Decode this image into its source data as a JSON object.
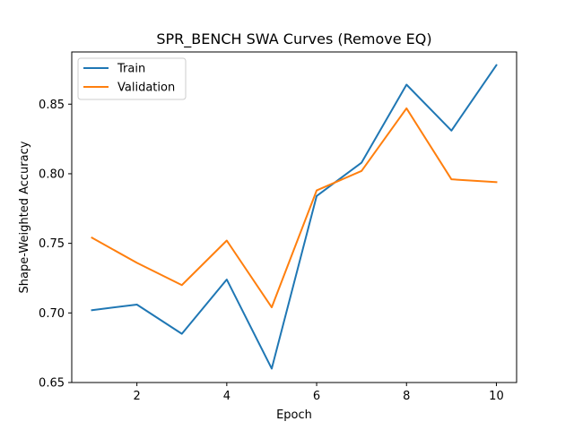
{
  "chart_data": {
    "type": "line",
    "title": "SPR_BENCH SWA Curves (Remove EQ)",
    "xlabel": "Epoch",
    "ylabel": "Shape-Weighted Accuracy",
    "x": [
      1,
      2,
      3,
      4,
      5,
      6,
      7,
      8,
      9,
      10
    ],
    "xlim": [
      0.55,
      10.45
    ],
    "ylim": [
      0.65,
      0.8875
    ],
    "xticks": [
      2,
      4,
      6,
      8,
      10
    ],
    "xtick_labels": [
      "2",
      "4",
      "6",
      "8",
      "10"
    ],
    "yticks": [
      0.65,
      0.7,
      0.75,
      0.8,
      0.85
    ],
    "ytick_labels": [
      "0.65",
      "0.70",
      "0.75",
      "0.80",
      "0.85"
    ],
    "grid": false,
    "legend_position": "top-left",
    "series": [
      {
        "name": "Train",
        "color": "#1f77b4",
        "values": [
          0.702,
          0.706,
          0.685,
          0.724,
          0.66,
          0.784,
          0.808,
          0.864,
          0.831,
          0.878
        ]
      },
      {
        "name": "Validation",
        "color": "#ff7f0e",
        "values": [
          0.754,
          0.736,
          0.72,
          0.752,
          0.704,
          0.788,
          0.802,
          0.847,
          0.796,
          0.794
        ]
      }
    ]
  }
}
